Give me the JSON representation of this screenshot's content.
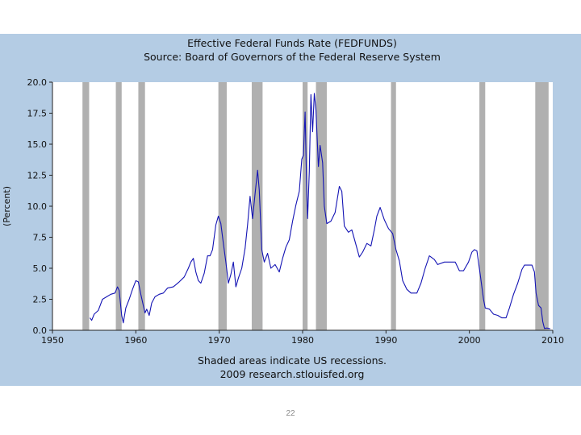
{
  "chart_data": {
    "type": "line",
    "title": "Effective Federal Funds Rate (FEDFUNDS)",
    "subtitle": "Source: Board of Governors of the Federal Reserve System",
    "xlabel": "",
    "ylabel": "(Percent)",
    "xlim": [
      1950,
      2010
    ],
    "ylim": [
      0,
      20
    ],
    "x_ticks": [
      "1950",
      "1960",
      "1970",
      "1980",
      "1990",
      "2000",
      "2010"
    ],
    "y_ticks": [
      "0.0",
      "2.5",
      "5.0",
      "7.5",
      "10.0",
      "12.5",
      "15.0",
      "17.5",
      "20.0"
    ],
    "grid": false,
    "series": [
      {
        "color": "#1414b4",
        "points": [
          [
            1954.5,
            1.0
          ],
          [
            1954.7,
            0.8
          ],
          [
            1955.0,
            1.3
          ],
          [
            1955.5,
            1.6
          ],
          [
            1956.0,
            2.5
          ],
          [
            1956.5,
            2.7
          ],
          [
            1957.0,
            2.9
          ],
          [
            1957.5,
            3.0
          ],
          [
            1957.8,
            3.5
          ],
          [
            1958.0,
            3.2
          ],
          [
            1958.3,
            1.2
          ],
          [
            1958.5,
            0.6
          ],
          [
            1958.8,
            1.8
          ],
          [
            1959.2,
            2.5
          ],
          [
            1959.6,
            3.3
          ],
          [
            1960.0,
            4.0
          ],
          [
            1960.3,
            3.9
          ],
          [
            1960.6,
            2.9
          ],
          [
            1960.9,
            2.0
          ],
          [
            1961.1,
            1.4
          ],
          [
            1961.3,
            1.7
          ],
          [
            1961.6,
            1.2
          ],
          [
            1961.9,
            2.2
          ],
          [
            1962.3,
            2.7
          ],
          [
            1962.8,
            2.9
          ],
          [
            1963.3,
            3.0
          ],
          [
            1963.8,
            3.4
          ],
          [
            1964.5,
            3.5
          ],
          [
            1965.2,
            3.9
          ],
          [
            1965.8,
            4.3
          ],
          [
            1966.3,
            5.0
          ],
          [
            1966.6,
            5.5
          ],
          [
            1966.9,
            5.8
          ],
          [
            1967.2,
            4.7
          ],
          [
            1967.5,
            4.0
          ],
          [
            1967.8,
            3.8
          ],
          [
            1968.2,
            4.6
          ],
          [
            1968.6,
            6.0
          ],
          [
            1968.9,
            6.0
          ],
          [
            1969.2,
            6.5
          ],
          [
            1969.6,
            8.5
          ],
          [
            1969.9,
            9.2
          ],
          [
            1970.2,
            8.6
          ],
          [
            1970.5,
            7.0
          ],
          [
            1970.8,
            5.5
          ],
          [
            1971.1,
            3.8
          ],
          [
            1971.4,
            4.5
          ],
          [
            1971.7,
            5.5
          ],
          [
            1972.0,
            3.5
          ],
          [
            1972.3,
            4.2
          ],
          [
            1972.7,
            5.0
          ],
          [
            1973.1,
            6.6
          ],
          [
            1973.4,
            8.5
          ],
          [
            1973.7,
            10.8
          ],
          [
            1974.0,
            9.0
          ],
          [
            1974.3,
            11.0
          ],
          [
            1974.6,
            12.9
          ],
          [
            1974.8,
            11.3
          ],
          [
            1975.1,
            6.5
          ],
          [
            1975.4,
            5.5
          ],
          [
            1975.8,
            6.2
          ],
          [
            1976.2,
            5.0
          ],
          [
            1976.7,
            5.3
          ],
          [
            1977.2,
            4.7
          ],
          [
            1977.6,
            5.8
          ],
          [
            1978.0,
            6.7
          ],
          [
            1978.4,
            7.3
          ],
          [
            1978.8,
            8.8
          ],
          [
            1979.2,
            10.1
          ],
          [
            1979.6,
            11.2
          ],
          [
            1979.9,
            13.8
          ],
          [
            1980.1,
            14.1
          ],
          [
            1980.3,
            17.6
          ],
          [
            1980.5,
            11.0
          ],
          [
            1980.6,
            9.0
          ],
          [
            1980.8,
            12.8
          ],
          [
            1981.0,
            19.0
          ],
          [
            1981.2,
            16.0
          ],
          [
            1981.4,
            19.1
          ],
          [
            1981.6,
            17.8
          ],
          [
            1981.9,
            13.2
          ],
          [
            1982.1,
            14.9
          ],
          [
            1982.4,
            13.5
          ],
          [
            1982.6,
            10.0
          ],
          [
            1982.9,
            8.6
          ],
          [
            1983.4,
            8.8
          ],
          [
            1983.9,
            9.5
          ],
          [
            1984.4,
            11.6
          ],
          [
            1984.7,
            11.2
          ],
          [
            1985.0,
            8.4
          ],
          [
            1985.5,
            7.9
          ],
          [
            1985.9,
            8.1
          ],
          [
            1986.4,
            6.9
          ],
          [
            1986.8,
            5.9
          ],
          [
            1987.2,
            6.3
          ],
          [
            1987.7,
            7.0
          ],
          [
            1988.2,
            6.8
          ],
          [
            1988.6,
            8.1
          ],
          [
            1988.9,
            9.2
          ],
          [
            1989.3,
            9.9
          ],
          [
            1989.8,
            8.9
          ],
          [
            1990.3,
            8.2
          ],
          [
            1990.8,
            7.8
          ],
          [
            1991.2,
            6.5
          ],
          [
            1991.6,
            5.6
          ],
          [
            1992.0,
            4.0
          ],
          [
            1992.5,
            3.3
          ],
          [
            1993.0,
            3.0
          ],
          [
            1993.7,
            3.0
          ],
          [
            1994.2,
            3.8
          ],
          [
            1994.7,
            5.0
          ],
          [
            1995.2,
            6.0
          ],
          [
            1995.8,
            5.7
          ],
          [
            1996.2,
            5.3
          ],
          [
            1997.0,
            5.5
          ],
          [
            1997.8,
            5.5
          ],
          [
            1998.3,
            5.5
          ],
          [
            1998.8,
            4.8
          ],
          [
            1999.3,
            4.8
          ],
          [
            1999.9,
            5.5
          ],
          [
            2000.3,
            6.3
          ],
          [
            2000.6,
            6.5
          ],
          [
            2000.9,
            6.4
          ],
          [
            2001.3,
            4.5
          ],
          [
            2001.7,
            2.5
          ],
          [
            2001.9,
            1.8
          ],
          [
            2002.4,
            1.7
          ],
          [
            2002.9,
            1.3
          ],
          [
            2003.4,
            1.2
          ],
          [
            2003.9,
            1.0
          ],
          [
            2004.4,
            1.0
          ],
          [
            2004.8,
            1.8
          ],
          [
            2005.3,
            2.9
          ],
          [
            2005.8,
            3.8
          ],
          [
            2006.3,
            4.9
          ],
          [
            2006.6,
            5.25
          ],
          [
            2007.0,
            5.25
          ],
          [
            2007.5,
            5.25
          ],
          [
            2007.8,
            4.7
          ],
          [
            2008.0,
            3.0
          ],
          [
            2008.3,
            2.0
          ],
          [
            2008.6,
            1.8
          ],
          [
            2008.8,
            0.7
          ],
          [
            2009.0,
            0.15
          ],
          [
            2009.3,
            0.18
          ],
          [
            2009.7,
            0.12
          ]
        ]
      }
    ],
    "recessions": [
      [
        1953.6,
        1954.4
      ],
      [
        1957.6,
        1958.3
      ],
      [
        1960.3,
        1961.1
      ],
      [
        1969.9,
        1970.9
      ],
      [
        1973.9,
        1975.2
      ],
      [
        1980.0,
        1980.6
      ],
      [
        1981.6,
        1982.9
      ],
      [
        1990.6,
        1991.2
      ],
      [
        2001.2,
        2001.9
      ],
      [
        2007.9,
        2009.5
      ]
    ],
    "annotations": [
      "Shaded areas indicate US recessions.",
      "2009 research.stlouisfed.org"
    ],
    "colors": {
      "panel_background": "#b4cce4",
      "plot_background": "#ffffff",
      "recession_shading": "#b0b0b0",
      "line": "#1414b4"
    }
  },
  "slide": {
    "number": "22"
  }
}
